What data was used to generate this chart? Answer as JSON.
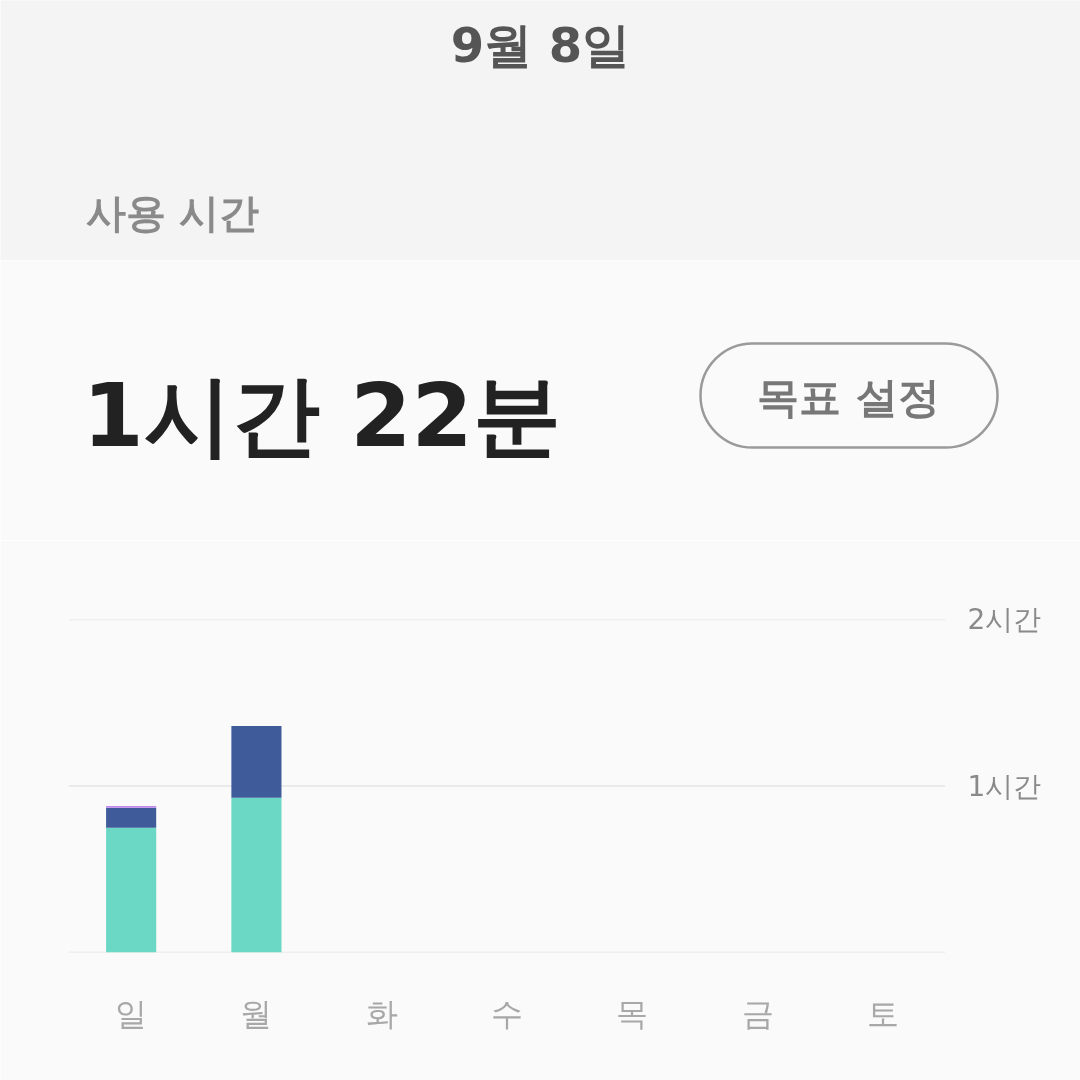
{
  "chart_data": {
    "type": "bar",
    "title": "9월 8일",
    "subtitle": "사용 시간",
    "annotations": [
      "1시간 22분",
      "목표 설정"
    ],
    "categories": [
      "일",
      "월",
      "화",
      "수",
      "목",
      "금",
      "토"
    ],
    "stacked": true,
    "series": [
      {
        "color": "#6ad8c4",
        "values": [
          0.75,
          0.93,
          null,
          null,
          null,
          null,
          null
        ]
      },
      {
        "color": "#3f5b99",
        "values": [
          0.12,
          0.43,
          null,
          null,
          null,
          null,
          null
        ]
      },
      {
        "color": "#c58af0",
        "values": [
          0.01,
          null,
          null,
          null,
          null,
          null,
          null
        ]
      }
    ],
    "ylim": [
      0,
      2
    ],
    "yticks": [
      {
        "value": 0,
        "label": null
      },
      {
        "value": 1,
        "label": "1시간"
      },
      {
        "value": 2,
        "label": "2시간"
      }
    ],
    "grid": "y"
  }
}
